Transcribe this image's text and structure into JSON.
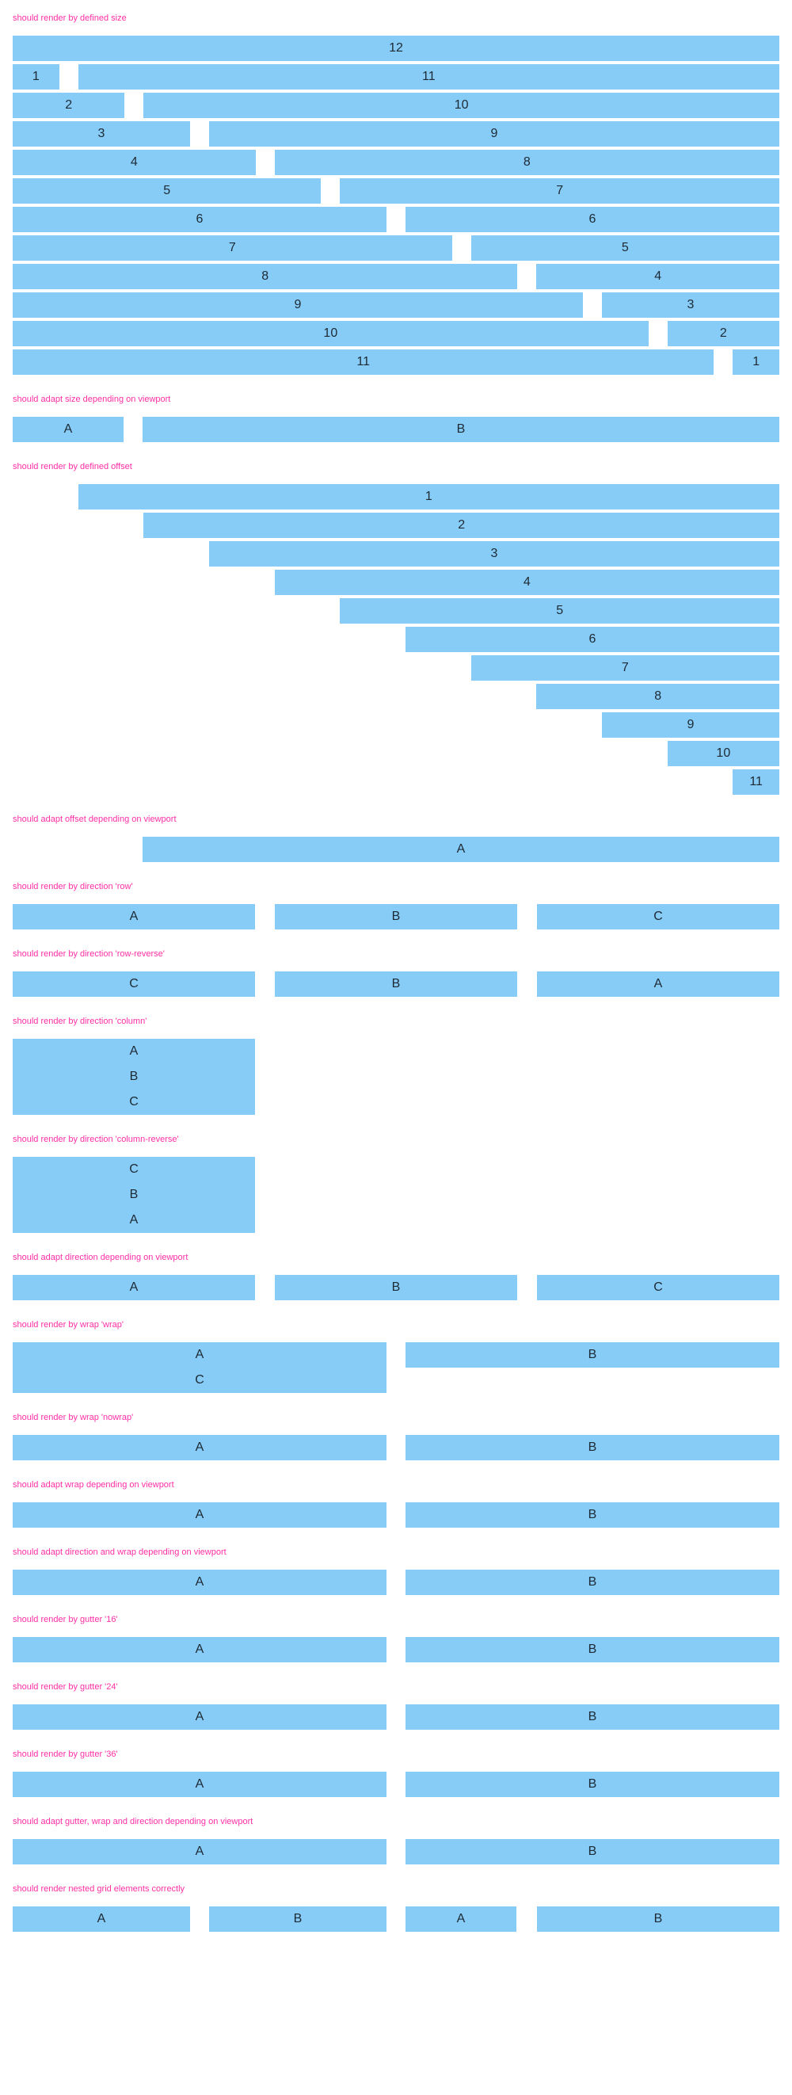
{
  "accent": "#87cbf7",
  "title_color": "#ff2ea6",
  "sections": {
    "defined_size": {
      "title": "should render by defined size",
      "rows": [
        [
          "12"
        ],
        [
          "1",
          "11"
        ],
        [
          "2",
          "10"
        ],
        [
          "3",
          "9"
        ],
        [
          "4",
          "8"
        ],
        [
          "5",
          "7"
        ],
        [
          "6",
          "6"
        ],
        [
          "7",
          "5"
        ],
        [
          "8",
          "4"
        ],
        [
          "9",
          "3"
        ],
        [
          "10",
          "2"
        ],
        [
          "11",
          "1"
        ]
      ]
    },
    "adapt_size": {
      "title": "should adapt size depending on viewport",
      "cells": [
        "A",
        "B"
      ]
    },
    "defined_offset": {
      "title": "should render by defined offset",
      "labels": [
        "1",
        "2",
        "3",
        "4",
        "5",
        "6",
        "7",
        "8",
        "9",
        "10",
        "11"
      ]
    },
    "adapt_offset": {
      "title": "should adapt offset depending on viewport",
      "cells": [
        "A"
      ]
    },
    "dir_row": {
      "title": "should render by direction 'row'",
      "cells": [
        "A",
        "B",
        "C"
      ]
    },
    "dir_row_reverse": {
      "title": "should render by direction 'row-reverse'",
      "cells": [
        "C",
        "B",
        "A"
      ]
    },
    "dir_column": {
      "title": "should render by direction 'column'",
      "cells": [
        "A",
        "B",
        "C"
      ]
    },
    "dir_column_reverse": {
      "title": "should render by direction 'column-reverse'",
      "cells": [
        "C",
        "B",
        "A"
      ]
    },
    "adapt_direction": {
      "title": "should adapt direction depending on viewport",
      "cells": [
        "A",
        "B",
        "C"
      ]
    },
    "wrap_wrap": {
      "title": "should render by wrap 'wrap'",
      "left": [
        "A",
        "C"
      ],
      "right": "B"
    },
    "wrap_nowrap": {
      "title": "should render by wrap 'nowrap'",
      "cells": [
        "A",
        "B"
      ]
    },
    "adapt_wrap": {
      "title": "should adapt wrap depending on viewport",
      "cells": [
        "A",
        "B"
      ]
    },
    "adapt_dir_wrap": {
      "title": "should adapt direction and wrap depending on viewport",
      "cells": [
        "A",
        "B"
      ]
    },
    "gutter_16": {
      "title": "should render by gutter '16'",
      "cells": [
        "A",
        "B"
      ]
    },
    "gutter_24": {
      "title": "should render by gutter '24'",
      "cells": [
        "A",
        "B"
      ]
    },
    "gutter_36": {
      "title": "should render by gutter '36'",
      "cells": [
        "A",
        "B"
      ]
    },
    "adapt_gutter": {
      "title": "should adapt gutter, wrap and direction depending on viewport",
      "cells": [
        "A",
        "B"
      ]
    },
    "nested": {
      "title": "should render nested grid elements correctly",
      "cells": [
        "A",
        "B",
        "A",
        "B"
      ]
    }
  }
}
